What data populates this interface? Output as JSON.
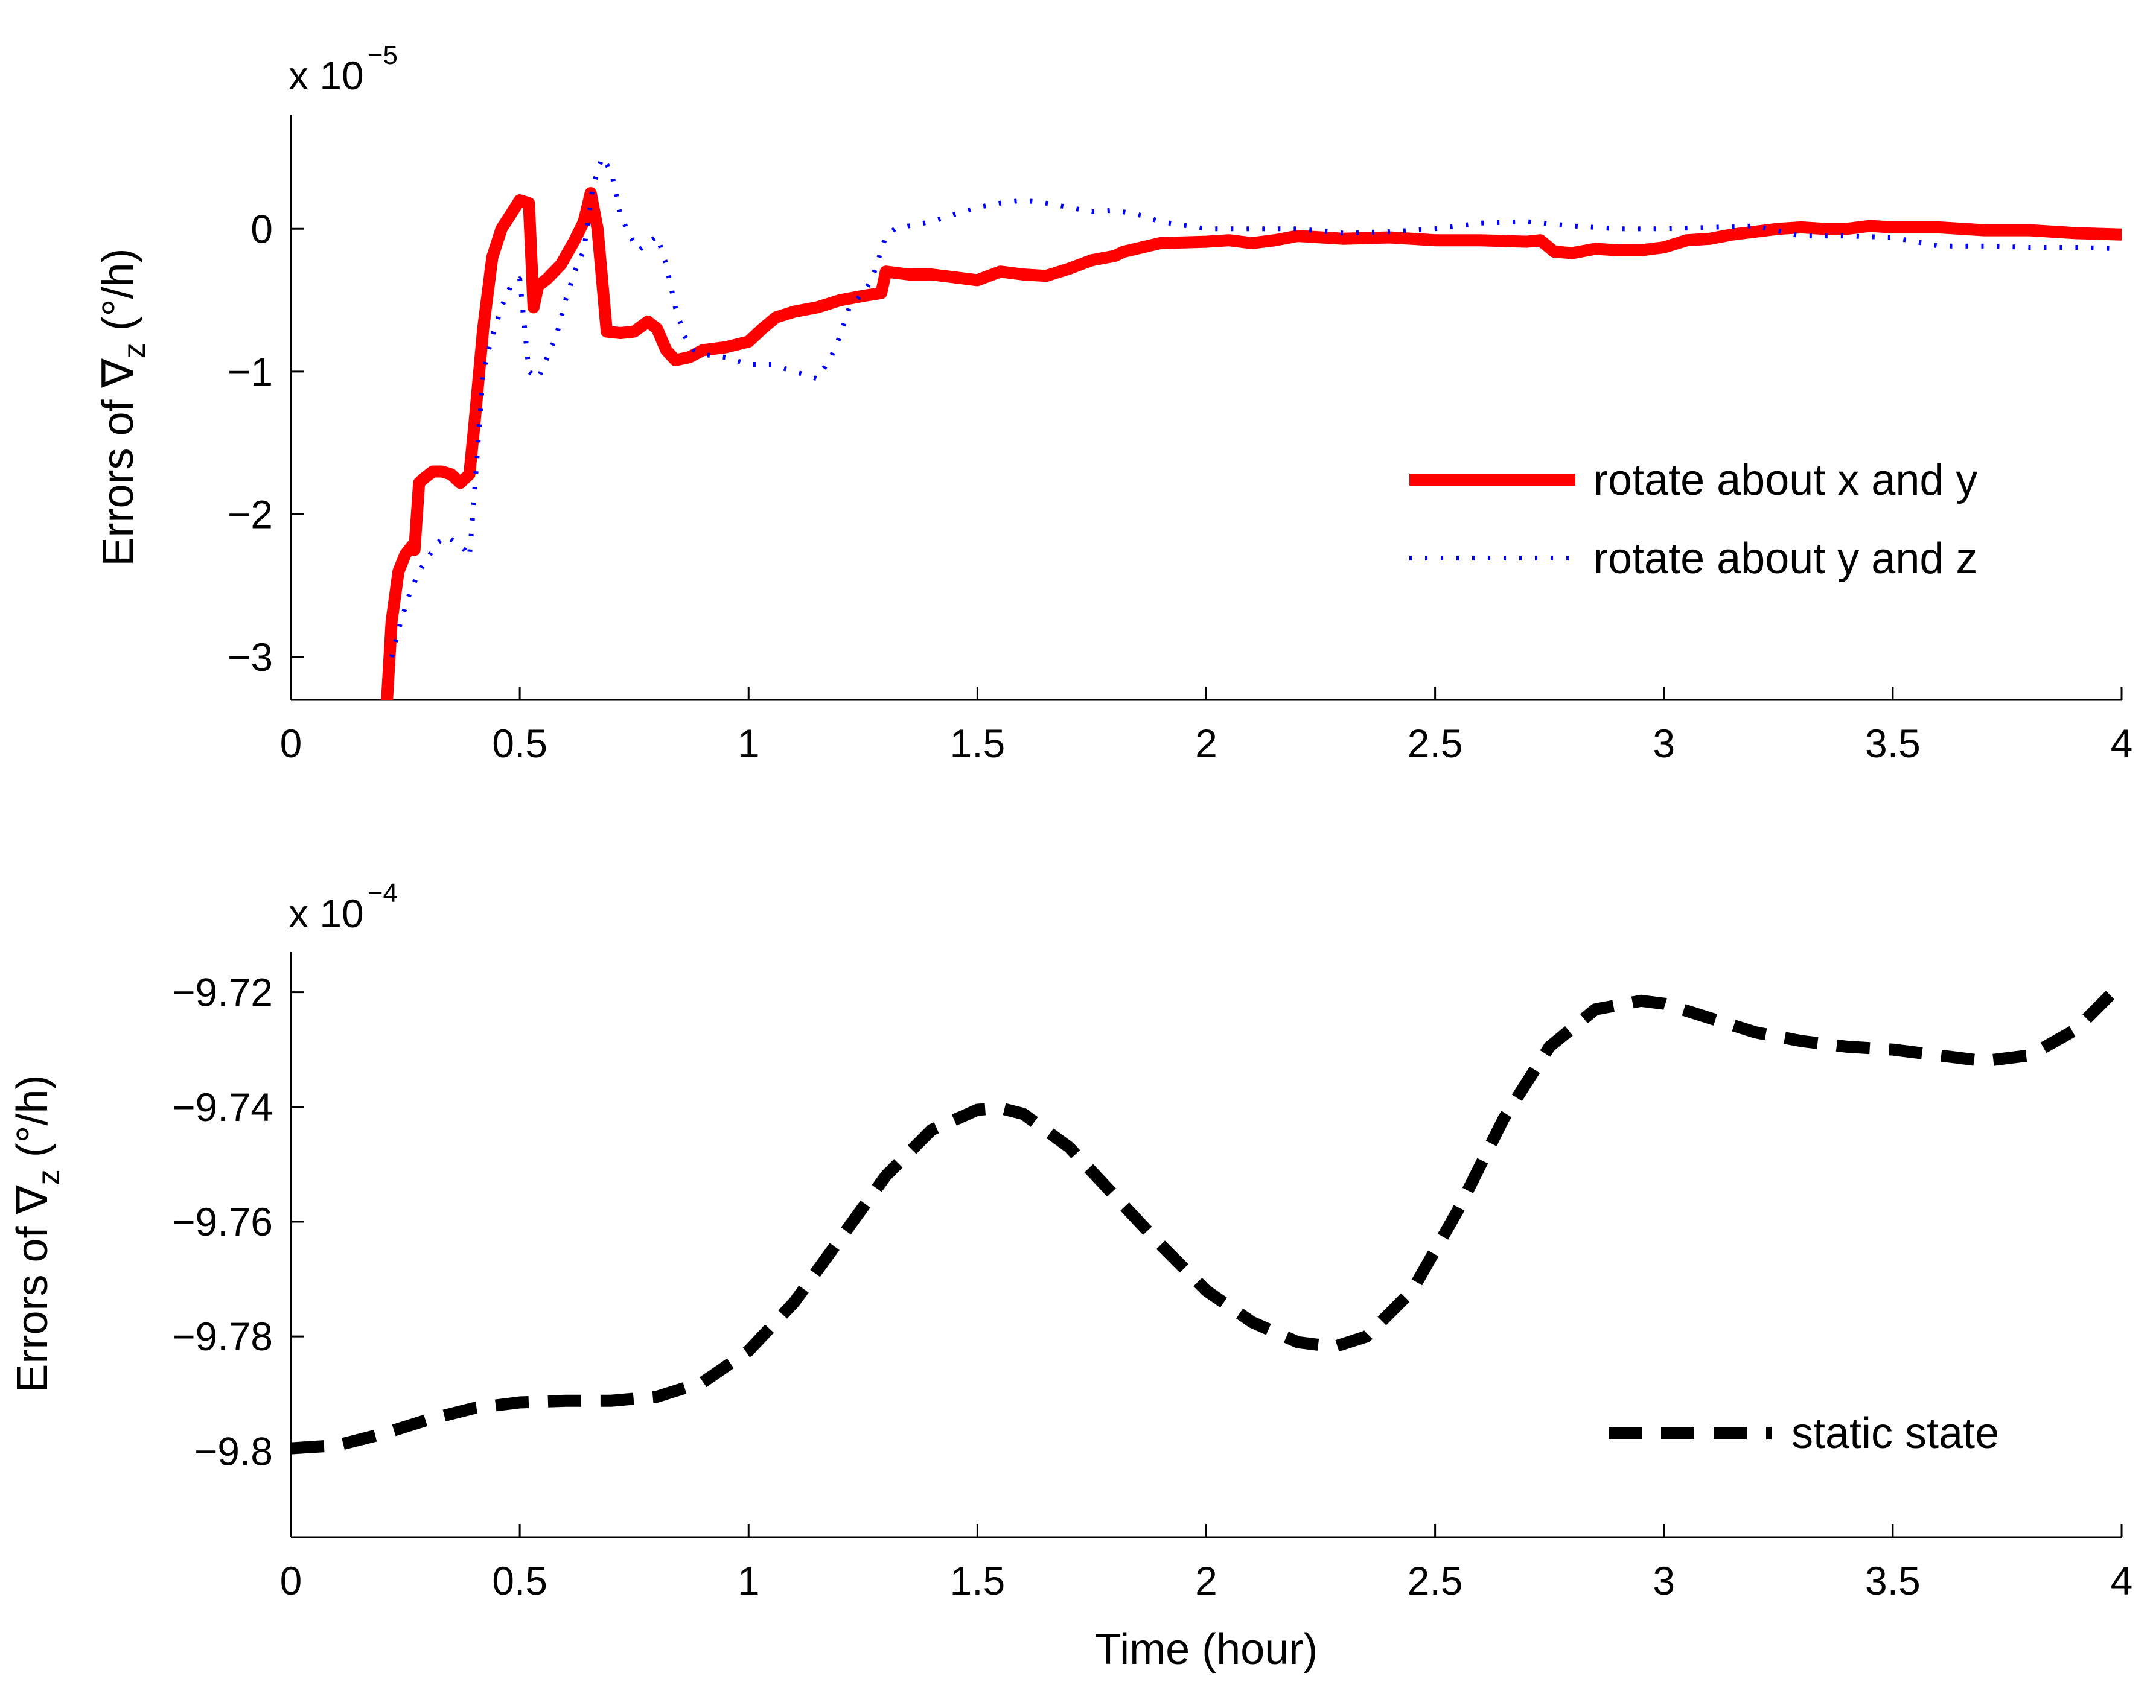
{
  "chart_data": [
    {
      "type": "line",
      "title": "",
      "xlabel": "",
      "ylabel_prefix": "Errors of ",
      "ylabel_symbol": "∇",
      "ylabel_sub": "z",
      "ylabel_suffix": " (°/h)",
      "y_multiplier": "x 10",
      "y_exponent": "−5",
      "xlim": [
        0,
        4
      ],
      "ylim": [
        -3.3,
        0.8
      ],
      "x_ticks": [
        0,
        0.5,
        1,
        1.5,
        2,
        2.5,
        3,
        3.5,
        4
      ],
      "x_tick_labels": [
        "0",
        "0.5",
        "1",
        "1.5",
        "2",
        "2.5",
        "3",
        "3.5",
        "4"
      ],
      "y_ticks": [
        -3,
        -2,
        -1,
        0
      ],
      "y_tick_labels": [
        "−3",
        "−2",
        "−1",
        "0"
      ],
      "legend_position": "right",
      "series": [
        {
          "name": "rotate about x and y",
          "color": "#ff0000",
          "style": "solid",
          "x": [
            0.21,
            0.22,
            0.235,
            0.25,
            0.265,
            0.27,
            0.28,
            0.29,
            0.31,
            0.33,
            0.35,
            0.37,
            0.39,
            0.4,
            0.42,
            0.44,
            0.46,
            0.48,
            0.5,
            0.52,
            0.53,
            0.54,
            0.56,
            0.59,
            0.62,
            0.64,
            0.655,
            0.67,
            0.69,
            0.72,
            0.75,
            0.78,
            0.8,
            0.82,
            0.84,
            0.87,
            0.9,
            0.95,
            1.0,
            1.03,
            1.06,
            1.1,
            1.15,
            1.2,
            1.25,
            1.29,
            1.3,
            1.35,
            1.4,
            1.45,
            1.5,
            1.55,
            1.6,
            1.65,
            1.7,
            1.75,
            1.8,
            1.82,
            1.9,
            2.0,
            2.05,
            2.1,
            2.15,
            2.2,
            2.3,
            2.4,
            2.5,
            2.6,
            2.7,
            2.73,
            2.76,
            2.8,
            2.85,
            2.9,
            2.95,
            3.0,
            3.05,
            3.1,
            3.15,
            3.2,
            3.25,
            3.3,
            3.35,
            3.4,
            3.45,
            3.5,
            3.6,
            3.7,
            3.8,
            3.85,
            3.9,
            4.0
          ],
          "y": [
            -3.3,
            -2.75,
            -2.4,
            -2.28,
            -2.22,
            -2.25,
            -1.78,
            -1.75,
            -1.7,
            -1.7,
            -1.72,
            -1.78,
            -1.72,
            -1.4,
            -0.7,
            -0.2,
            0.0,
            0.1,
            0.2,
            0.18,
            -0.55,
            -0.4,
            -0.35,
            -0.25,
            -0.08,
            0.05,
            0.25,
            0.0,
            -0.72,
            -0.73,
            -0.72,
            -0.65,
            -0.7,
            -0.85,
            -0.92,
            -0.9,
            -0.85,
            -0.83,
            -0.79,
            -0.7,
            -0.62,
            -0.58,
            -0.55,
            -0.5,
            -0.47,
            -0.45,
            -0.3,
            -0.32,
            -0.32,
            -0.34,
            -0.36,
            -0.3,
            -0.32,
            -0.33,
            -0.28,
            -0.22,
            -0.19,
            -0.16,
            -0.1,
            -0.09,
            -0.08,
            -0.1,
            -0.08,
            -0.05,
            -0.07,
            -0.06,
            -0.08,
            -0.08,
            -0.09,
            -0.08,
            -0.16,
            -0.17,
            -0.14,
            -0.15,
            -0.15,
            -0.13,
            -0.08,
            -0.07,
            -0.04,
            -0.02,
            0.0,
            0.01,
            0.0,
            0.0,
            0.02,
            0.01,
            0.01,
            -0.01,
            -0.01,
            -0.02,
            -0.03,
            -0.04
          ]
        },
        {
          "name": "rotate about y and z",
          "color": "#0000ff",
          "style": "dotted",
          "x": [
            0.22,
            0.24,
            0.26,
            0.28,
            0.3,
            0.32,
            0.34,
            0.36,
            0.38,
            0.39,
            0.4,
            0.42,
            0.44,
            0.46,
            0.48,
            0.5,
            0.52,
            0.54,
            0.56,
            0.58,
            0.6,
            0.62,
            0.64,
            0.66,
            0.68,
            0.7,
            0.72,
            0.74,
            0.76,
            0.78,
            0.8,
            0.82,
            0.84,
            0.86,
            0.88,
            0.9,
            0.95,
            1.0,
            1.05,
            1.1,
            1.15,
            1.18,
            1.2,
            1.22,
            1.25,
            1.27,
            1.29,
            1.3,
            1.32,
            1.35,
            1.4,
            1.45,
            1.5,
            1.55,
            1.6,
            1.65,
            1.7,
            1.75,
            1.8,
            1.85,
            1.9,
            2.0,
            2.1,
            2.2,
            2.3,
            2.4,
            2.5,
            2.6,
            2.7,
            2.8,
            2.9,
            3.0,
            3.1,
            3.2,
            3.3,
            3.4,
            3.5,
            3.6,
            3.7,
            3.8,
            3.9,
            4.0
          ],
          "y": [
            -3.0,
            -2.75,
            -2.55,
            -2.4,
            -2.3,
            -2.2,
            -2.15,
            -2.2,
            -2.25,
            -2.3,
            -1.9,
            -1.0,
            -0.75,
            -0.55,
            -0.4,
            -0.35,
            -1.0,
            -1.05,
            -0.9,
            -0.75,
            -0.5,
            -0.3,
            -0.15,
            0.3,
            0.5,
            0.4,
            0.1,
            -0.05,
            -0.15,
            -0.1,
            -0.05,
            -0.25,
            -0.55,
            -0.75,
            -0.85,
            -0.88,
            -0.9,
            -0.95,
            -0.95,
            -1.0,
            -1.05,
            -0.9,
            -0.75,
            -0.55,
            -0.45,
            -0.35,
            -0.15,
            -0.05,
            0.0,
            0.02,
            0.05,
            0.1,
            0.15,
            0.18,
            0.2,
            0.18,
            0.15,
            0.12,
            0.13,
            0.1,
            0.05,
            0.0,
            0.0,
            0.0,
            -0.03,
            -0.02,
            0.0,
            0.04,
            0.05,
            0.02,
            0.0,
            0.0,
            0.01,
            0.02,
            -0.05,
            -0.05,
            -0.06,
            -0.12,
            -0.12,
            -0.13,
            -0.13,
            -0.14
          ]
        }
      ]
    },
    {
      "type": "line",
      "title": "",
      "xlabel": "Time (hour)",
      "ylabel_prefix": "Errors of ",
      "ylabel_symbol": "∇",
      "ylabel_sub": "z",
      "ylabel_suffix": " (°/h)",
      "y_multiplier": "x 10",
      "y_exponent": "−4",
      "xlim": [
        0,
        4
      ],
      "ylim": [
        -9.815,
        -9.713
      ],
      "x_ticks": [
        0,
        0.5,
        1,
        1.5,
        2,
        2.5,
        3,
        3.5,
        4
      ],
      "x_tick_labels": [
        "0",
        "0.5",
        "1",
        "1.5",
        "2",
        "2.5",
        "3",
        "3.5",
        "4"
      ],
      "y_ticks": [
        -9.8,
        -9.78,
        -9.76,
        -9.74,
        -9.72
      ],
      "y_tick_labels": [
        "−9.8",
        "−9.78",
        "−9.76",
        "−9.74",
        "−9.72"
      ],
      "legend_position": "bottom-right",
      "series": [
        {
          "name": "static state",
          "color": "#000000",
          "style": "dashed",
          "x": [
            0.0,
            0.1,
            0.2,
            0.3,
            0.4,
            0.5,
            0.6,
            0.7,
            0.8,
            0.9,
            1.0,
            1.1,
            1.2,
            1.3,
            1.4,
            1.5,
            1.55,
            1.6,
            1.7,
            1.8,
            1.9,
            2.0,
            2.1,
            2.2,
            2.28,
            2.35,
            2.45,
            2.55,
            2.65,
            2.75,
            2.85,
            2.95,
            3.0,
            3.1,
            3.2,
            3.3,
            3.4,
            3.5,
            3.6,
            3.7,
            3.8,
            3.9,
            4.0
          ],
          "y": [
            -9.7995,
            -9.799,
            -9.797,
            -9.7945,
            -9.7925,
            -9.7915,
            -9.7912,
            -9.7912,
            -9.7905,
            -9.788,
            -9.7825,
            -9.774,
            -9.763,
            -9.752,
            -9.744,
            -9.7405,
            -9.7402,
            -9.7412,
            -9.747,
            -9.7555,
            -9.764,
            -9.772,
            -9.7775,
            -9.781,
            -9.7818,
            -9.78,
            -9.772,
            -9.758,
            -9.742,
            -9.7295,
            -9.723,
            -9.7215,
            -9.722,
            -9.7245,
            -9.727,
            -9.7285,
            -9.7295,
            -9.73,
            -9.731,
            -9.732,
            -9.731,
            -9.7265,
            -9.7185
          ]
        }
      ]
    }
  ]
}
